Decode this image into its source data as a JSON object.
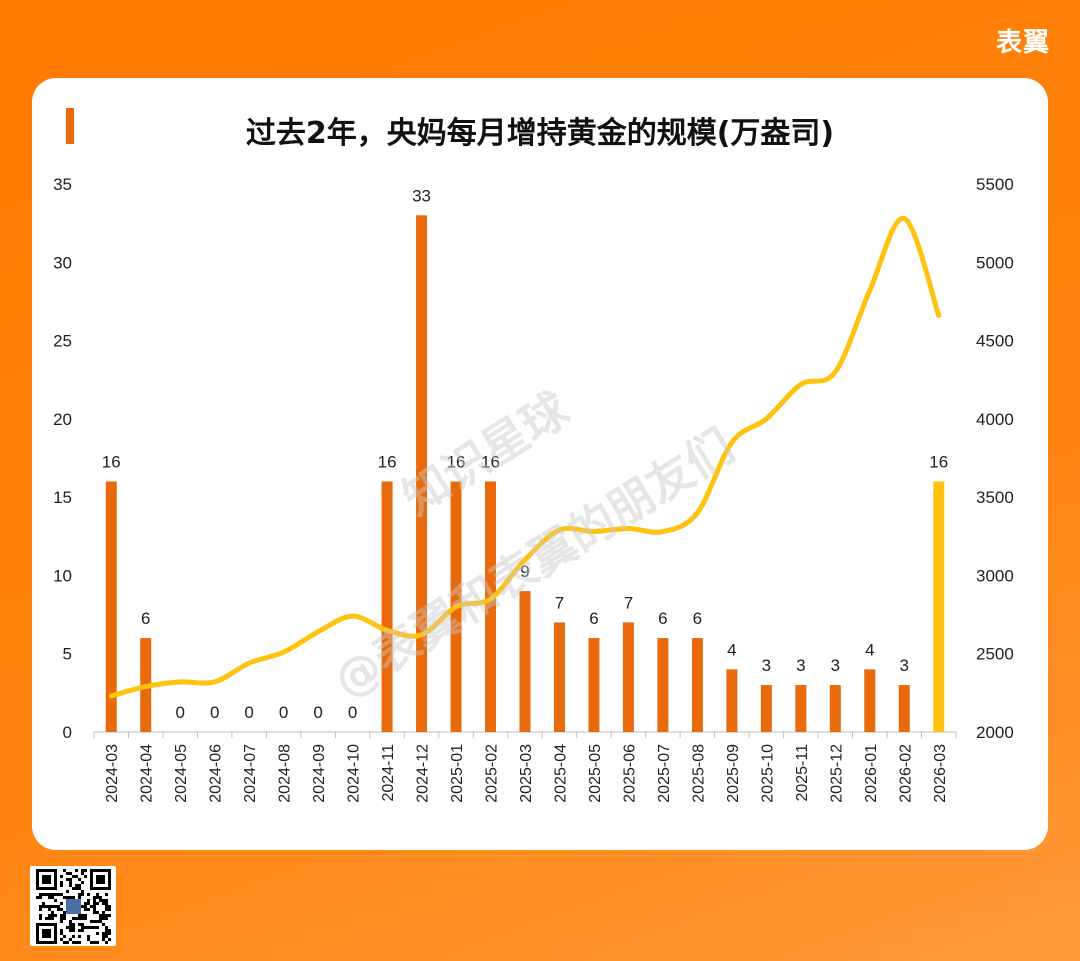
{
  "brand": "表翼",
  "title": "过去2年，央妈每月增持黄金的规模(万盎司)",
  "watermark": {
    "line1": "知识星球",
    "line2": "@表翼和表翼的朋友们"
  },
  "colors": {
    "background": "#ff7a00",
    "bar": "#e96a0c",
    "bar_highlight": "#ffc20e",
    "line": "#ffc20e",
    "axis_text": "#222222"
  },
  "chart_data": {
    "type": "bar",
    "title": "过去2年，央妈每月增持黄金的规模(万盎司)",
    "categories": [
      "2024-03",
      "2024-04",
      "2024-05",
      "2024-06",
      "2024-07",
      "2024-08",
      "2024-09",
      "2024-10",
      "2024-11",
      "2024-12",
      "2025-01",
      "2025-02",
      "2025-03",
      "2025-04",
      "2025-05",
      "2025-06",
      "2025-07",
      "2025-08",
      "2025-09",
      "2025-10",
      "2025-11",
      "2025-12",
      "2026-01",
      "2026-02",
      "2026-03"
    ],
    "series": [
      {
        "type": "bar",
        "axis": "left",
        "values": [
          16,
          6,
          0,
          0,
          0,
          0,
          0,
          0,
          16,
          33,
          16,
          16,
          9,
          7,
          6,
          7,
          6,
          6,
          4,
          3,
          3,
          3,
          4,
          3,
          16
        ],
        "highlight_last": true
      },
      {
        "type": "line",
        "axis": "right",
        "values": [
          2230,
          2290,
          2320,
          2320,
          2440,
          2510,
          2640,
          2740,
          2650,
          2620,
          2800,
          2850,
          3100,
          3290,
          3280,
          3300,
          3280,
          3400,
          3850,
          4000,
          4220,
          4300,
          4820,
          5280,
          4660
        ]
      }
    ],
    "y_left": {
      "min": 0,
      "max": 35,
      "ticks": [
        0,
        5,
        10,
        15,
        20,
        25,
        30,
        35
      ]
    },
    "y_right": {
      "min": 2000,
      "max": 5500,
      "ticks": [
        2000,
        2500,
        3000,
        3500,
        4000,
        4500,
        5000,
        5500
      ]
    },
    "grid": false,
    "legend": "none"
  }
}
